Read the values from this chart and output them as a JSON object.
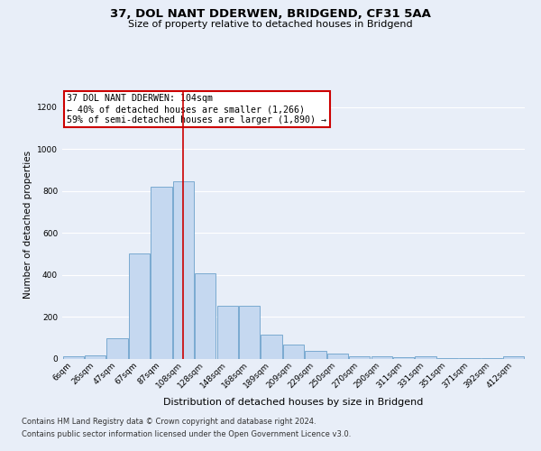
{
  "title1": "37, DOL NANT DDERWEN, BRIDGEND, CF31 5AA",
  "title2": "Size of property relative to detached houses in Bridgend",
  "xlabel": "Distribution of detached houses by size in Bridgend",
  "ylabel": "Number of detached properties",
  "categories": [
    "6sqm",
    "26sqm",
    "47sqm",
    "67sqm",
    "87sqm",
    "108sqm",
    "128sqm",
    "148sqm",
    "168sqm",
    "189sqm",
    "209sqm",
    "229sqm",
    "250sqm",
    "270sqm",
    "290sqm",
    "311sqm",
    "331sqm",
    "351sqm",
    "371sqm",
    "392sqm",
    "412sqm"
  ],
  "values": [
    10,
    15,
    95,
    500,
    820,
    845,
    405,
    250,
    250,
    115,
    65,
    35,
    22,
    12,
    12,
    5,
    12,
    2,
    2,
    2,
    10
  ],
  "bar_color": "#c5d8f0",
  "bar_edge_color": "#7aaad0",
  "vline_x": 5,
  "vline_color": "#cc0000",
  "annotation_text": "37 DOL NANT DDERWEN: 104sqm\n← 40% of detached houses are smaller (1,266)\n59% of semi-detached houses are larger (1,890) →",
  "annotation_box_color": "#cc0000",
  "ylim": [
    0,
    1280
  ],
  "yticks": [
    0,
    200,
    400,
    600,
    800,
    1000,
    1200
  ],
  "footer1": "Contains HM Land Registry data © Crown copyright and database right 2024.",
  "footer2": "Contains public sector information licensed under the Open Government Licence v3.0.",
  "bg_color": "#e8eef8",
  "plot_bg_color": "#e8eef8",
  "grid_color": "#ffffff",
  "title1_fontsize": 9.5,
  "title2_fontsize": 8,
  "ylabel_fontsize": 7.5,
  "xlabel_fontsize": 8,
  "tick_fontsize": 6.5,
  "footer_fontsize": 6
}
